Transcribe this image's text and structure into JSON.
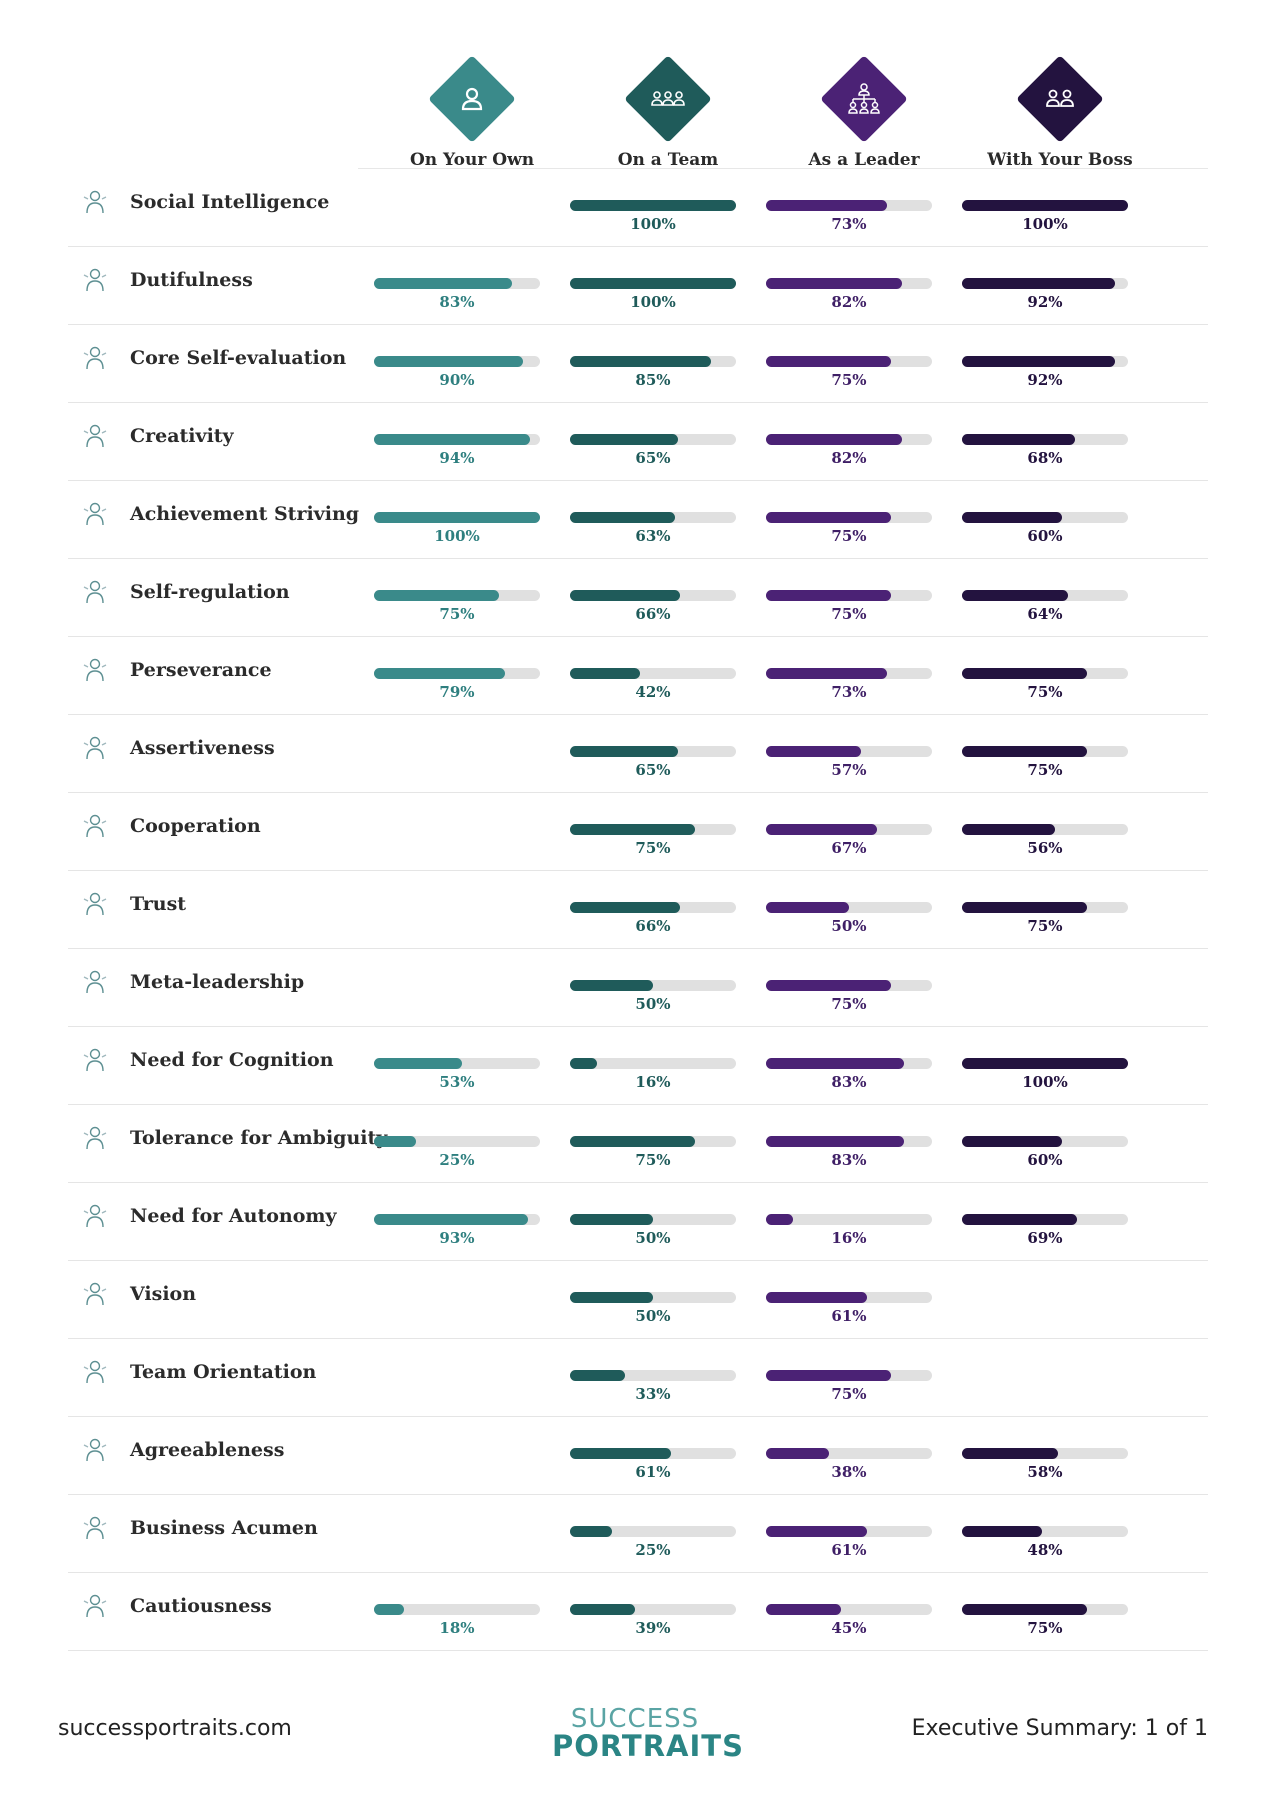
{
  "columns": [
    {
      "label": "On Your Own",
      "color": "#3a8a8a",
      "icon": "person-icon"
    },
    {
      "label": "On a Team",
      "color": "#1f5b5a",
      "icon": "team-icon"
    },
    {
      "label": "As a Leader",
      "color": "#4b2275",
      "icon": "org-chart-icon"
    },
    {
      "label": "With Your Boss",
      "color": "#23133f",
      "icon": "pair-icon"
    }
  ],
  "chart_data": {
    "type": "bar",
    "title": "Executive Summary",
    "series_names": [
      "On Your Own",
      "On a Team",
      "As a Leader",
      "With Your Boss"
    ],
    "rows": [
      {
        "trait": "Social Intelligence",
        "icon": "social-intelligence-icon",
        "values": [
          null,
          100,
          73,
          100
        ],
        "labels": [
          "",
          "100%",
          "73%",
          "100%"
        ]
      },
      {
        "trait": "Dutifulness",
        "icon": "dutifulness-icon",
        "values": [
          83,
          100,
          82,
          92
        ],
        "labels": [
          "83%",
          "100%",
          "82%",
          "92%"
        ]
      },
      {
        "trait": "Core Self-evaluation",
        "icon": "core-self-evaluation-icon",
        "values": [
          90,
          85,
          75,
          92
        ],
        "labels": [
          "90%",
          "85%",
          "75%",
          "92%"
        ]
      },
      {
        "trait": "Creativity",
        "icon": "creativity-icon",
        "values": [
          94,
          65,
          82,
          68
        ],
        "labels": [
          "94%",
          "65%",
          "82%",
          "68%"
        ]
      },
      {
        "trait": "Achievement Striving",
        "icon": "achievement-striving-icon",
        "values": [
          100,
          63,
          75,
          60
        ],
        "labels": [
          "100%",
          "63%",
          "75%",
          "60%"
        ]
      },
      {
        "trait": "Self-regulation",
        "icon": "self-regulation-icon",
        "values": [
          75,
          66,
          75,
          64
        ],
        "labels": [
          "75%",
          "66%",
          "75%",
          "64%"
        ]
      },
      {
        "trait": "Perseverance",
        "icon": "perseverance-icon",
        "values": [
          79,
          42,
          73,
          75
        ],
        "labels": [
          "79%",
          "42%",
          "73%",
          "75%"
        ]
      },
      {
        "trait": "Assertiveness",
        "icon": "assertiveness-icon",
        "values": [
          null,
          65,
          57,
          75
        ],
        "labels": [
          "",
          "65%",
          "57%",
          "75%"
        ]
      },
      {
        "trait": "Cooperation",
        "icon": "cooperation-icon",
        "values": [
          null,
          75,
          67,
          56
        ],
        "labels": [
          "",
          "75%",
          "67%",
          "56%"
        ]
      },
      {
        "trait": "Trust",
        "icon": "trust-icon",
        "values": [
          null,
          66,
          50,
          75
        ],
        "labels": [
          "",
          "66%",
          "50%",
          "75%"
        ]
      },
      {
        "trait": "Meta-leadership",
        "icon": "meta-leadership-icon",
        "values": [
          null,
          50,
          75,
          null
        ],
        "labels": [
          "",
          "50%",
          "75%",
          ""
        ]
      },
      {
        "trait": "Need for Cognition",
        "icon": "need-for-cognition-icon",
        "values": [
          53,
          16,
          83,
          100
        ],
        "labels": [
          "53%",
          "16%",
          "83%",
          "100%"
        ]
      },
      {
        "trait": "Tolerance for Ambiguity",
        "icon": "tolerance-for-ambiguity-icon",
        "values": [
          25,
          75,
          83,
          60
        ],
        "labels": [
          "25%",
          "75%",
          "83%",
          "60%"
        ]
      },
      {
        "trait": "Need for Autonomy",
        "icon": "need-for-autonomy-icon",
        "values": [
          93,
          50,
          16,
          69
        ],
        "labels": [
          "93%",
          "50%",
          "16%",
          "69%"
        ]
      },
      {
        "trait": "Vision",
        "icon": "vision-icon",
        "values": [
          null,
          50,
          61,
          null
        ],
        "labels": [
          "",
          "50%",
          "61%",
          ""
        ]
      },
      {
        "trait": "Team Orientation",
        "icon": "team-orientation-icon",
        "values": [
          null,
          33,
          75,
          null
        ],
        "labels": [
          "",
          "33%",
          "75%",
          ""
        ]
      },
      {
        "trait": "Agreeableness",
        "icon": "agreeableness-icon",
        "values": [
          null,
          61,
          38,
          58
        ],
        "labels": [
          "",
          "61%",
          "38%",
          "58%"
        ]
      },
      {
        "trait": "Business Acumen",
        "icon": "business-acumen-icon",
        "values": [
          null,
          25,
          61,
          48
        ],
        "labels": [
          "",
          "25%",
          "61%",
          "48%"
        ]
      },
      {
        "trait": "Cautiousness",
        "icon": "cautiousness-icon",
        "values": [
          18,
          39,
          45,
          75
        ],
        "labels": [
          "18%",
          "39%",
          "45%",
          "75%"
        ]
      }
    ],
    "ylim": [
      0,
      100
    ]
  },
  "footer": {
    "website": "successportraits.com",
    "logo_top": "SUCCESS",
    "logo_bottom": "PORTRAITS",
    "page_label": "Executive Summary: 1 of 1"
  }
}
